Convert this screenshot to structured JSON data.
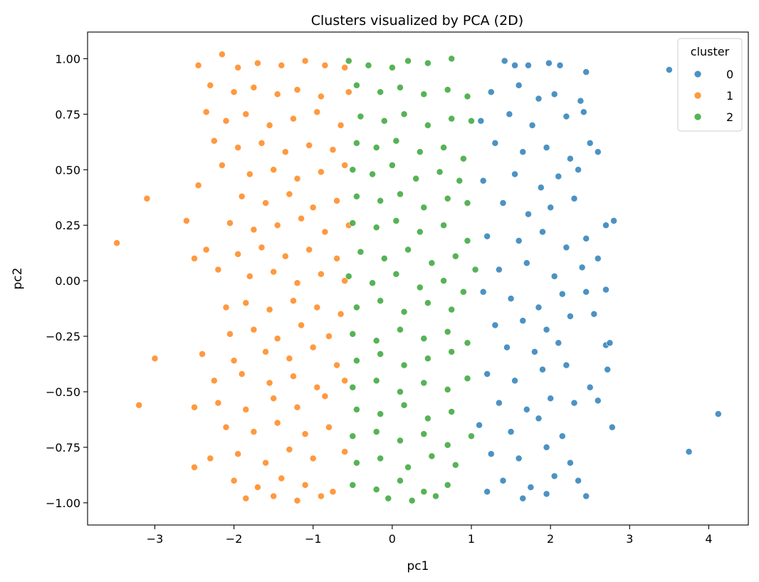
{
  "chart_data": {
    "type": "scatter",
    "title": "Clusters visualized by PCA (2D)",
    "xlabel": "pc1",
    "ylabel": "pc2",
    "xlim": [
      -3.85,
      4.5
    ],
    "ylim": [
      -1.1,
      1.12
    ],
    "xticks": [
      -3,
      -2,
      -1,
      0,
      1,
      2,
      3,
      4
    ],
    "xtick_labels": [
      "−3",
      "−2",
      "−1",
      "0",
      "1",
      "2",
      "3",
      "4"
    ],
    "yticks": [
      -1.0,
      -0.75,
      -0.5,
      -0.25,
      0.0,
      0.25,
      0.5,
      0.75,
      1.0
    ],
    "ytick_labels": [
      "−1.00",
      "−0.75",
      "−0.50",
      "−0.25",
      "0.00",
      "0.25",
      "0.50",
      "0.75",
      "1.00"
    ],
    "grid": false,
    "legend": {
      "title": "cluster",
      "placement": "top-right"
    },
    "series": [
      {
        "name": "0",
        "color": "#1f77b4",
        "points": [
          [
            1.42,
            0.99
          ],
          [
            1.55,
            0.97
          ],
          [
            1.72,
            0.97
          ],
          [
            1.98,
            0.98
          ],
          [
            2.12,
            0.97
          ],
          [
            2.45,
            0.94
          ],
          [
            3.5,
            0.95
          ],
          [
            1.25,
            0.85
          ],
          [
            1.6,
            0.88
          ],
          [
            1.85,
            0.82
          ],
          [
            2.05,
            0.84
          ],
          [
            2.38,
            0.81
          ],
          [
            1.12,
            0.72
          ],
          [
            1.48,
            0.75
          ],
          [
            1.77,
            0.7
          ],
          [
            2.2,
            0.74
          ],
          [
            2.42,
            0.76
          ],
          [
            1.3,
            0.62
          ],
          [
            1.65,
            0.58
          ],
          [
            1.95,
            0.6
          ],
          [
            2.25,
            0.55
          ],
          [
            2.5,
            0.62
          ],
          [
            2.6,
            0.58
          ],
          [
            1.15,
            0.45
          ],
          [
            1.55,
            0.48
          ],
          [
            1.88,
            0.42
          ],
          [
            2.1,
            0.47
          ],
          [
            2.35,
            0.5
          ],
          [
            1.4,
            0.35
          ],
          [
            1.72,
            0.3
          ],
          [
            2.0,
            0.33
          ],
          [
            2.3,
            0.37
          ],
          [
            2.7,
            0.25
          ],
          [
            2.8,
            0.27
          ],
          [
            1.2,
            0.2
          ],
          [
            1.6,
            0.18
          ],
          [
            1.9,
            0.22
          ],
          [
            2.2,
            0.15
          ],
          [
            2.45,
            0.19
          ],
          [
            1.35,
            0.05
          ],
          [
            1.7,
            0.08
          ],
          [
            2.05,
            0.02
          ],
          [
            2.4,
            0.06
          ],
          [
            2.6,
            0.1
          ],
          [
            1.15,
            -0.05
          ],
          [
            1.5,
            -0.08
          ],
          [
            1.85,
            -0.12
          ],
          [
            2.15,
            -0.06
          ],
          [
            2.45,
            -0.05
          ],
          [
            2.7,
            -0.04
          ],
          [
            1.3,
            -0.2
          ],
          [
            1.65,
            -0.18
          ],
          [
            1.95,
            -0.22
          ],
          [
            2.25,
            -0.16
          ],
          [
            2.55,
            -0.15
          ],
          [
            1.45,
            -0.3
          ],
          [
            1.8,
            -0.32
          ],
          [
            2.1,
            -0.28
          ],
          [
            2.7,
            -0.29
          ],
          [
            2.75,
            -0.28
          ],
          [
            1.2,
            -0.42
          ],
          [
            1.55,
            -0.45
          ],
          [
            1.9,
            -0.4
          ],
          [
            2.2,
            -0.38
          ],
          [
            2.5,
            -0.48
          ],
          [
            2.72,
            -0.4
          ],
          [
            1.35,
            -0.55
          ],
          [
            1.7,
            -0.58
          ],
          [
            2.0,
            -0.53
          ],
          [
            2.3,
            -0.55
          ],
          [
            2.6,
            -0.54
          ],
          [
            1.1,
            -0.65
          ],
          [
            1.5,
            -0.68
          ],
          [
            1.85,
            -0.62
          ],
          [
            2.15,
            -0.7
          ],
          [
            2.78,
            -0.66
          ],
          [
            1.25,
            -0.78
          ],
          [
            1.6,
            -0.8
          ],
          [
            1.95,
            -0.75
          ],
          [
            2.25,
            -0.82
          ],
          [
            3.75,
            -0.77
          ],
          [
            4.12,
            -0.6
          ],
          [
            1.4,
            -0.9
          ],
          [
            1.75,
            -0.93
          ],
          [
            2.05,
            -0.88
          ],
          [
            2.35,
            -0.9
          ],
          [
            1.2,
            -0.95
          ],
          [
            1.65,
            -0.98
          ],
          [
            1.95,
            -0.96
          ],
          [
            2.45,
            -0.97
          ]
        ]
      },
      {
        "name": "1",
        "color": "#ff7f0e",
        "points": [
          [
            -2.15,
            1.02
          ],
          [
            -2.45,
            0.97
          ],
          [
            -1.95,
            0.96
          ],
          [
            -1.7,
            0.98
          ],
          [
            -1.4,
            0.97
          ],
          [
            -1.1,
            0.99
          ],
          [
            -0.85,
            0.97
          ],
          [
            -0.6,
            0.96
          ],
          [
            -2.3,
            0.88
          ],
          [
            -2.0,
            0.85
          ],
          [
            -1.75,
            0.87
          ],
          [
            -1.45,
            0.84
          ],
          [
            -1.2,
            0.86
          ],
          [
            -0.9,
            0.83
          ],
          [
            -0.55,
            0.85
          ],
          [
            -2.35,
            0.76
          ],
          [
            -2.1,
            0.72
          ],
          [
            -1.85,
            0.75
          ],
          [
            -1.55,
            0.7
          ],
          [
            -1.25,
            0.73
          ],
          [
            -0.95,
            0.76
          ],
          [
            -0.65,
            0.7
          ],
          [
            -2.25,
            0.63
          ],
          [
            -1.95,
            0.6
          ],
          [
            -1.65,
            0.62
          ],
          [
            -1.35,
            0.58
          ],
          [
            -1.05,
            0.61
          ],
          [
            -0.75,
            0.59
          ],
          [
            -2.15,
            0.52
          ],
          [
            -1.8,
            0.48
          ],
          [
            -1.5,
            0.5
          ],
          [
            -1.2,
            0.46
          ],
          [
            -0.9,
            0.49
          ],
          [
            -0.6,
            0.52
          ],
          [
            -2.45,
            0.43
          ],
          [
            -3.1,
            0.37
          ],
          [
            -1.9,
            0.38
          ],
          [
            -1.6,
            0.35
          ],
          [
            -1.3,
            0.39
          ],
          [
            -1.0,
            0.33
          ],
          [
            -0.7,
            0.36
          ],
          [
            -2.6,
            0.27
          ],
          [
            -2.05,
            0.26
          ],
          [
            -1.75,
            0.23
          ],
          [
            -1.45,
            0.25
          ],
          [
            -1.15,
            0.28
          ],
          [
            -0.85,
            0.22
          ],
          [
            -0.55,
            0.25
          ],
          [
            -3.48,
            0.17
          ],
          [
            -2.35,
            0.14
          ],
          [
            -1.95,
            0.12
          ],
          [
            -1.65,
            0.15
          ],
          [
            -1.35,
            0.11
          ],
          [
            -1.05,
            0.14
          ],
          [
            -0.7,
            0.1
          ],
          [
            -2.5,
            0.1
          ],
          [
            -2.2,
            0.05
          ],
          [
            -1.8,
            0.02
          ],
          [
            -1.5,
            0.04
          ],
          [
            -1.2,
            -0.01
          ],
          [
            -0.9,
            0.03
          ],
          [
            -0.6,
            0.0
          ],
          [
            -2.1,
            -0.12
          ],
          [
            -1.85,
            -0.1
          ],
          [
            -1.55,
            -0.13
          ],
          [
            -1.25,
            -0.09
          ],
          [
            -0.95,
            -0.12
          ],
          [
            -0.65,
            -0.15
          ],
          [
            -2.05,
            -0.24
          ],
          [
            -1.75,
            -0.22
          ],
          [
            -1.45,
            -0.26
          ],
          [
            -1.15,
            -0.2
          ],
          [
            -0.8,
            -0.25
          ],
          [
            -2.4,
            -0.33
          ],
          [
            -2.0,
            -0.36
          ],
          [
            -1.6,
            -0.32
          ],
          [
            -1.3,
            -0.35
          ],
          [
            -1.0,
            -0.3
          ],
          [
            -0.7,
            -0.38
          ],
          [
            -3.0,
            -0.35
          ],
          [
            -2.25,
            -0.45
          ],
          [
            -1.9,
            -0.42
          ],
          [
            -1.55,
            -0.46
          ],
          [
            -1.25,
            -0.43
          ],
          [
            -0.95,
            -0.48
          ],
          [
            -0.6,
            -0.45
          ],
          [
            -2.2,
            -0.55
          ],
          [
            -1.85,
            -0.58
          ],
          [
            -1.5,
            -0.53
          ],
          [
            -1.2,
            -0.57
          ],
          [
            -0.85,
            -0.52
          ],
          [
            -2.5,
            -0.57
          ],
          [
            -3.2,
            -0.56
          ],
          [
            -2.1,
            -0.66
          ],
          [
            -1.75,
            -0.68
          ],
          [
            -1.45,
            -0.64
          ],
          [
            -1.1,
            -0.69
          ],
          [
            -0.8,
            -0.66
          ],
          [
            -2.3,
            -0.8
          ],
          [
            -1.95,
            -0.78
          ],
          [
            -1.6,
            -0.82
          ],
          [
            -1.3,
            -0.76
          ],
          [
            -1.0,
            -0.8
          ],
          [
            -0.6,
            -0.77
          ],
          [
            -2.5,
            -0.84
          ],
          [
            -2.0,
            -0.9
          ],
          [
            -1.7,
            -0.93
          ],
          [
            -1.4,
            -0.89
          ],
          [
            -1.1,
            -0.92
          ],
          [
            -0.75,
            -0.95
          ],
          [
            -1.85,
            -0.98
          ],
          [
            -1.5,
            -0.97
          ],
          [
            -1.2,
            -0.99
          ],
          [
            -0.9,
            -0.97
          ]
        ]
      },
      {
        "name": "2",
        "color": "#2ca02c",
        "points": [
          [
            -0.55,
            0.99
          ],
          [
            -0.3,
            0.97
          ],
          [
            0.0,
            0.96
          ],
          [
            0.2,
            0.99
          ],
          [
            0.45,
            0.98
          ],
          [
            0.75,
            1.0
          ],
          [
            -0.45,
            0.88
          ],
          [
            -0.15,
            0.85
          ],
          [
            0.1,
            0.87
          ],
          [
            0.4,
            0.84
          ],
          [
            0.7,
            0.86
          ],
          [
            0.95,
            0.83
          ],
          [
            -0.4,
            0.74
          ],
          [
            -0.1,
            0.72
          ],
          [
            0.15,
            0.75
          ],
          [
            0.45,
            0.7
          ],
          [
            0.75,
            0.73
          ],
          [
            1.0,
            0.72
          ],
          [
            -0.45,
            0.62
          ],
          [
            -0.2,
            0.6
          ],
          [
            0.05,
            0.63
          ],
          [
            0.35,
            0.58
          ],
          [
            0.65,
            0.6
          ],
          [
            0.9,
            0.55
          ],
          [
            -0.5,
            0.5
          ],
          [
            -0.25,
            0.48
          ],
          [
            0.0,
            0.52
          ],
          [
            0.3,
            0.46
          ],
          [
            0.6,
            0.49
          ],
          [
            0.85,
            0.45
          ],
          [
            -0.45,
            0.38
          ],
          [
            -0.15,
            0.36
          ],
          [
            0.1,
            0.39
          ],
          [
            0.4,
            0.33
          ],
          [
            0.7,
            0.37
          ],
          [
            0.95,
            0.35
          ],
          [
            -0.5,
            0.26
          ],
          [
            -0.2,
            0.24
          ],
          [
            0.05,
            0.27
          ],
          [
            0.35,
            0.22
          ],
          [
            0.65,
            0.25
          ],
          [
            0.95,
            0.18
          ],
          [
            -0.4,
            0.13
          ],
          [
            -0.1,
            0.1
          ],
          [
            0.2,
            0.14
          ],
          [
            0.5,
            0.08
          ],
          [
            0.8,
            0.11
          ],
          [
            1.05,
            0.05
          ],
          [
            -0.55,
            0.02
          ],
          [
            -0.25,
            -0.01
          ],
          [
            0.05,
            0.03
          ],
          [
            0.35,
            -0.03
          ],
          [
            0.65,
            0.0
          ],
          [
            0.9,
            -0.05
          ],
          [
            -0.45,
            -0.12
          ],
          [
            -0.15,
            -0.09
          ],
          [
            0.15,
            -0.14
          ],
          [
            0.45,
            -0.1
          ],
          [
            0.75,
            -0.13
          ],
          [
            -0.5,
            -0.24
          ],
          [
            -0.2,
            -0.27
          ],
          [
            0.1,
            -0.22
          ],
          [
            0.4,
            -0.26
          ],
          [
            0.7,
            -0.23
          ],
          [
            0.95,
            -0.28
          ],
          [
            -0.45,
            -0.36
          ],
          [
            -0.15,
            -0.33
          ],
          [
            0.15,
            -0.38
          ],
          [
            0.45,
            -0.35
          ],
          [
            0.75,
            -0.32
          ],
          [
            -0.5,
            -0.48
          ],
          [
            -0.2,
            -0.45
          ],
          [
            0.1,
            -0.5
          ],
          [
            0.4,
            -0.46
          ],
          [
            0.7,
            -0.49
          ],
          [
            0.95,
            -0.44
          ],
          [
            -0.45,
            -0.58
          ],
          [
            -0.15,
            -0.6
          ],
          [
            0.15,
            -0.56
          ],
          [
            0.45,
            -0.62
          ],
          [
            0.75,
            -0.59
          ],
          [
            -0.5,
            -0.7
          ],
          [
            -0.2,
            -0.68
          ],
          [
            0.1,
            -0.72
          ],
          [
            0.4,
            -0.69
          ],
          [
            0.7,
            -0.74
          ],
          [
            1.0,
            -0.7
          ],
          [
            -0.45,
            -0.82
          ],
          [
            -0.15,
            -0.8
          ],
          [
            0.2,
            -0.84
          ],
          [
            0.5,
            -0.79
          ],
          [
            0.8,
            -0.83
          ],
          [
            -0.5,
            -0.92
          ],
          [
            -0.2,
            -0.94
          ],
          [
            0.1,
            -0.9
          ],
          [
            0.4,
            -0.95
          ],
          [
            0.7,
            -0.92
          ],
          [
            -0.05,
            -0.98
          ],
          [
            0.25,
            -0.99
          ],
          [
            0.55,
            -0.97
          ]
        ]
      }
    ]
  }
}
